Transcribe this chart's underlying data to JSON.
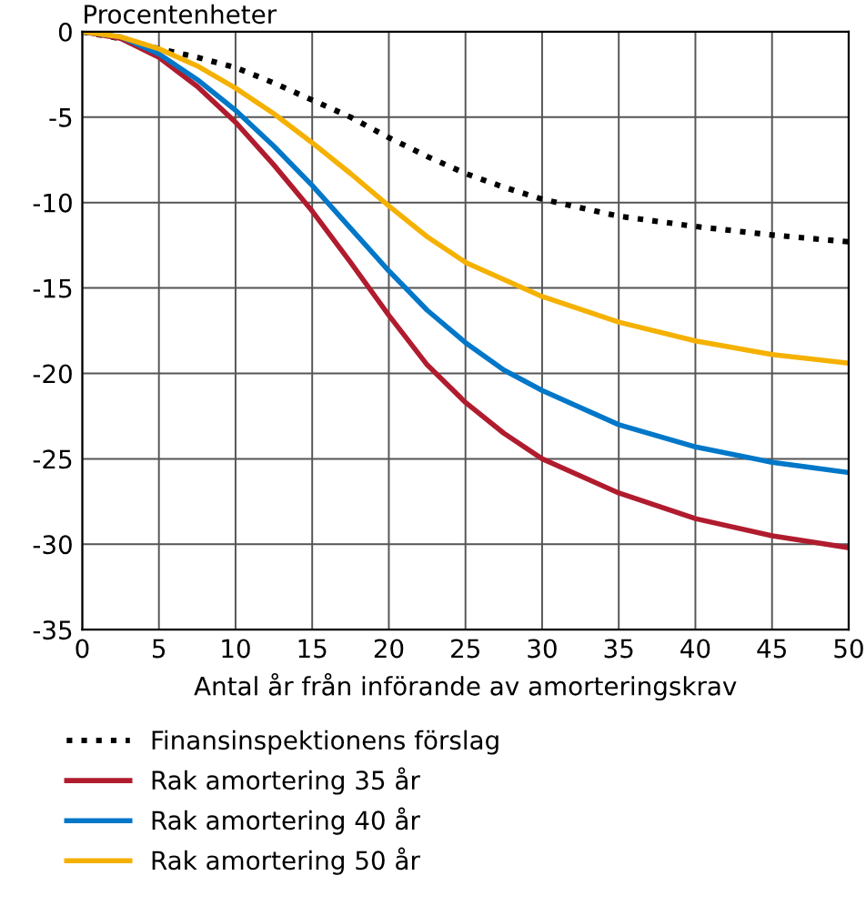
{
  "chart_data": {
    "type": "line",
    "ylabel": "Procentenheter",
    "xlabel": "Antal år från införande av amorteringskrav",
    "x": [
      0,
      2.5,
      5,
      7.5,
      10,
      12.5,
      15,
      17.5,
      20,
      22.5,
      25,
      27.5,
      30,
      35,
      40,
      45,
      50
    ],
    "series": [
      {
        "name": "Finansinspektionens förslag",
        "color": "#000000",
        "line_style": "dotted",
        "values": [
          0,
          -0.4,
          -1,
          -1.5,
          -2.1,
          -3,
          -4,
          -5,
          -6.2,
          -7.3,
          -8.3,
          -9.1,
          -9.8,
          -10.8,
          -11.4,
          -11.9,
          -12.3
        ]
      },
      {
        "name": "Rak amortering 35 år",
        "color": "#b01c2e",
        "line_style": "solid",
        "values": [
          0,
          -0.4,
          -1.5,
          -3.2,
          -5.3,
          -7.8,
          -10.5,
          -13.5,
          -16.6,
          -19.5,
          -21.7,
          -23.5,
          -25,
          -27,
          -28.5,
          -29.5,
          -30.2
        ]
      },
      {
        "name": "Rak amortering 40 år",
        "color": "#0077c8",
        "line_style": "solid",
        "values": [
          0,
          -0.3,
          -1.3,
          -2.8,
          -4.6,
          -6.7,
          -9,
          -11.5,
          -14,
          -16.3,
          -18.2,
          -19.8,
          -21,
          -23,
          -24.3,
          -25.2,
          -25.8
        ]
      },
      {
        "name": "Rak amortering 50 år",
        "color": "#f5b100",
        "line_style": "solid",
        "values": [
          0,
          -0.3,
          -1,
          -2,
          -3.3,
          -4.8,
          -6.5,
          -8.3,
          -10.2,
          -12,
          -13.5,
          -14.5,
          -15.5,
          -17,
          -18.1,
          -18.9,
          -19.4
        ]
      }
    ],
    "xlim": [
      0,
      50
    ],
    "xticks": [
      0,
      5,
      10,
      15,
      20,
      25,
      30,
      35,
      40,
      45,
      50
    ],
    "ylim": [
      -35,
      0
    ],
    "yticks": [
      0,
      -5,
      -10,
      -15,
      -20,
      -25,
      -30,
      -35
    ],
    "grid": true,
    "legend": "bottom"
  }
}
